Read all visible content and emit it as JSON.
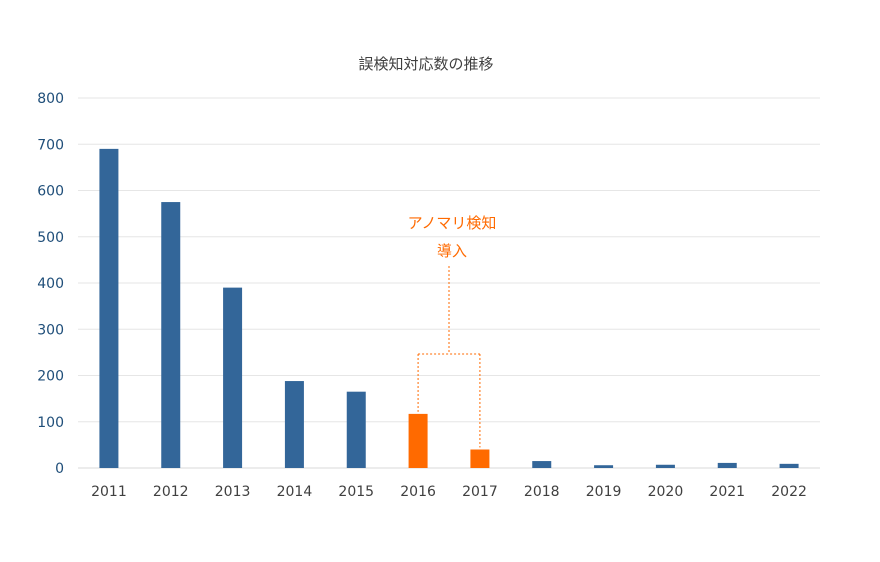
{
  "chart_data": {
    "type": "bar",
    "title": "誤検知対応数の推移",
    "categories": [
      "2011",
      "2012",
      "2013",
      "2014",
      "2015",
      "2016",
      "2017",
      "2018",
      "2019",
      "2020",
      "2021",
      "2022"
    ],
    "values": [
      690,
      575,
      390,
      188,
      165,
      117,
      40,
      15,
      6,
      7,
      11,
      9
    ],
    "highlighted_categories": [
      "2016",
      "2017"
    ],
    "ylim": [
      0,
      800
    ],
    "yticks": [
      0,
      100,
      200,
      300,
      400,
      500,
      600,
      700,
      800
    ],
    "grid": true,
    "colors": {
      "bar": "#336699",
      "highlight": "#ff6a00",
      "grid": "#e6e6e6",
      "axis": "#d9d9d9"
    },
    "annotation": {
      "line1": "アノマリ検知",
      "line2": "導入",
      "targets": [
        "2016",
        "2017"
      ]
    }
  }
}
